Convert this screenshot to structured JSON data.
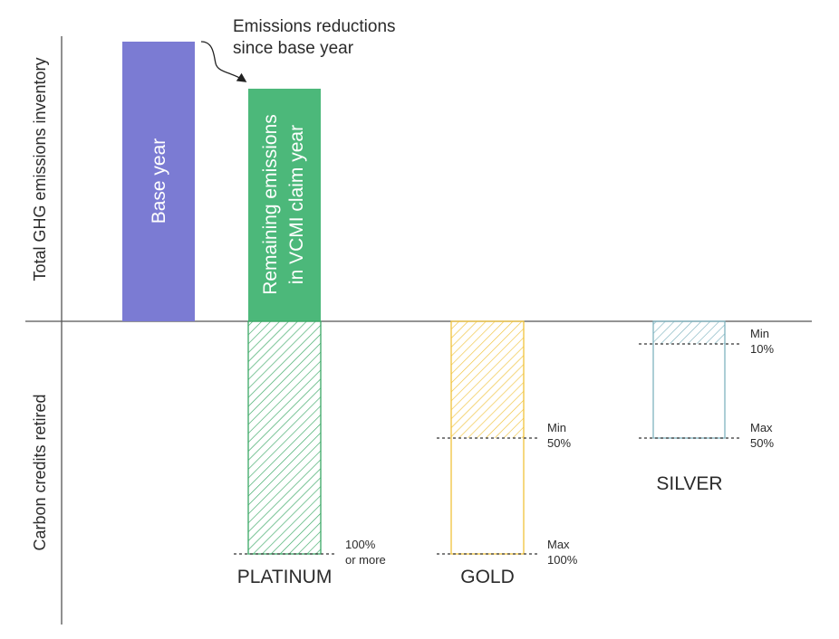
{
  "colors": {
    "base": "#7b7bd3",
    "remaining": "#4cb87a",
    "platinum": "#3aa865",
    "gold": "#f0c33c",
    "silver": "#7fb3bf",
    "axis": "#555555",
    "dashed": "#333333"
  },
  "axes": {
    "upper_label": "Total GHG emissions inventory",
    "lower_label": "Carbon credits retired"
  },
  "annotation": {
    "line1": "Emissions reductions",
    "line2": "since base year"
  },
  "bars": {
    "base_year": {
      "label": "Base year"
    },
    "remaining": {
      "line1": "Remaining emissions",
      "line2": "in VCMI claim year"
    }
  },
  "tiers": {
    "platinum": {
      "name": "PLATINUM",
      "max_line1": "100%",
      "max_line2": "or more",
      "min_fraction": 1.0,
      "max_fraction": 1.0
    },
    "gold": {
      "name": "GOLD",
      "min_line1": "Min",
      "min_line2": "50%",
      "max_line1": "Max",
      "max_line2": "100%",
      "min_fraction": 0.5,
      "max_fraction": 1.0
    },
    "silver": {
      "name": "SILVER",
      "min_line1": "Min",
      "min_line2": "10%",
      "max_line1": "Max",
      "max_line2": "50%",
      "min_fraction": 0.1,
      "max_fraction": 0.5
    }
  }
}
